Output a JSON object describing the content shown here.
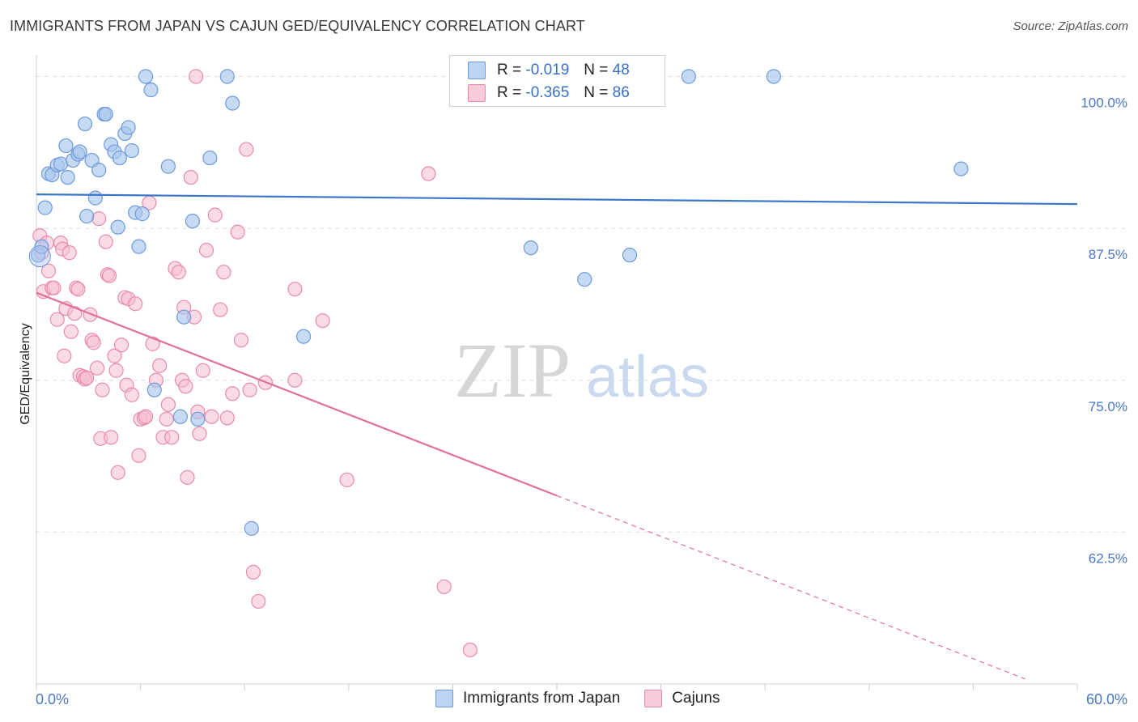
{
  "header": {
    "title": "IMMIGRANTS FROM JAPAN VS CAJUN GED/EQUIVALENCY CORRELATION CHART",
    "source": "Source: ZipAtlas.com"
  },
  "legend": {
    "rows": [
      {
        "r_label": "R =",
        "r_value": "-0.019",
        "n_label": "N =",
        "n_value": "48"
      },
      {
        "r_label": "R =",
        "r_value": "-0.365",
        "n_label": "N =",
        "n_value": "86"
      }
    ],
    "bottom": [
      "Immigrants from Japan",
      "Cajuns"
    ]
  },
  "watermark": {
    "zip": "ZIP",
    "atlas": "atlas"
  },
  "colors": {
    "blue_fill": "#a9c6ee",
    "blue_stroke": "#6d9ad9",
    "blue_line": "#3a77cc",
    "pink_fill": "#f6bdd0",
    "pink_stroke": "#e88aac",
    "pink_line": "#e0709a",
    "tick_text": "#4a78c4"
  },
  "chart_data": {
    "type": "scatter",
    "title": "IMMIGRANTS FROM JAPAN VS CAJUN GED/EQUIVALENCY CORRELATION CHART",
    "xlabel": "",
    "ylabel": "GED/Equivalency",
    "xlim": [
      0,
      60
    ],
    "ylim": [
      50,
      101.5
    ],
    "x_tick_labels": [
      "0.0%",
      "60.0%"
    ],
    "y_ticks": [
      62.5,
      75.0,
      87.5,
      100.0
    ],
    "y_tick_labels": [
      "62.5%",
      "75.0%",
      "87.5%",
      "100.0%"
    ],
    "grid": true,
    "legend_placement": "top-center",
    "series": [
      {
        "name": "Immigrants from Japan",
        "r": -0.019,
        "n": 48,
        "trend": {
          "x": [
            0,
            60
          ],
          "y": [
            90.3,
            89.5
          ]
        },
        "points": [
          [
            0.1,
            85.3
          ],
          [
            0.3,
            86.0
          ],
          [
            0.5,
            89.2
          ],
          [
            0.7,
            92.0
          ],
          [
            0.9,
            91.9
          ],
          [
            1.2,
            92.7
          ],
          [
            1.4,
            92.8
          ],
          [
            1.7,
            94.3
          ],
          [
            1.8,
            91.7
          ],
          [
            2.1,
            93.1
          ],
          [
            2.4,
            93.6
          ],
          [
            2.5,
            93.8
          ],
          [
            2.8,
            96.1
          ],
          [
            2.9,
            88.5
          ],
          [
            3.2,
            93.1
          ],
          [
            3.4,
            90.0
          ],
          [
            3.6,
            92.3
          ],
          [
            3.9,
            96.9
          ],
          [
            4.0,
            96.9
          ],
          [
            4.3,
            94.4
          ],
          [
            4.5,
            93.8
          ],
          [
            4.7,
            87.6
          ],
          [
            4.8,
            93.3
          ],
          [
            5.1,
            95.3
          ],
          [
            5.3,
            95.8
          ],
          [
            5.5,
            93.9
          ],
          [
            5.7,
            88.8
          ],
          [
            5.9,
            86.0
          ],
          [
            6.1,
            88.7
          ],
          [
            6.3,
            100.0
          ],
          [
            6.6,
            98.9
          ],
          [
            6.8,
            74.2
          ],
          [
            7.6,
            92.6
          ],
          [
            8.3,
            72.0
          ],
          [
            8.5,
            80.2
          ],
          [
            9.0,
            88.1
          ],
          [
            9.3,
            71.8
          ],
          [
            10.0,
            93.3
          ],
          [
            11.0,
            100.0
          ],
          [
            11.3,
            97.8
          ],
          [
            12.4,
            62.8
          ],
          [
            15.4,
            78.6
          ],
          [
            28.5,
            85.9
          ],
          [
            31.6,
            83.3
          ],
          [
            34.2,
            85.3
          ],
          [
            37.6,
            100.0
          ],
          [
            42.5,
            100.0
          ],
          [
            53.3,
            92.4
          ]
        ]
      },
      {
        "name": "Cajuns",
        "r": -0.365,
        "n": 86,
        "trend": {
          "x": [
            0,
            30
          ],
          "y": [
            82.2,
            65.5
          ]
        },
        "trend_extension": {
          "x": [
            30,
            57
          ],
          "y": [
            65.5,
            50.4
          ]
        },
        "points": [
          [
            0.2,
            86.9
          ],
          [
            0.3,
            85.5
          ],
          [
            0.4,
            82.3
          ],
          [
            0.6,
            86.3
          ],
          [
            0.7,
            84.0
          ],
          [
            0.9,
            82.6
          ],
          [
            1.0,
            82.6
          ],
          [
            1.2,
            80.0
          ],
          [
            1.4,
            86.3
          ],
          [
            1.5,
            85.8
          ],
          [
            1.6,
            77.0
          ],
          [
            1.7,
            80.9
          ],
          [
            1.9,
            85.5
          ],
          [
            2.0,
            79.0
          ],
          [
            2.2,
            80.5
          ],
          [
            2.3,
            82.6
          ],
          [
            2.4,
            82.5
          ],
          [
            2.5,
            75.4
          ],
          [
            2.7,
            75.3
          ],
          [
            2.8,
            75.1
          ],
          [
            2.9,
            75.2
          ],
          [
            3.1,
            80.4
          ],
          [
            3.2,
            78.3
          ],
          [
            3.3,
            78.1
          ],
          [
            3.5,
            76.0
          ],
          [
            3.6,
            88.3
          ],
          [
            3.7,
            70.2
          ],
          [
            3.8,
            74.2
          ],
          [
            4.0,
            86.4
          ],
          [
            4.1,
            83.7
          ],
          [
            4.2,
            83.6
          ],
          [
            4.3,
            70.3
          ],
          [
            4.5,
            77.0
          ],
          [
            4.6,
            75.8
          ],
          [
            4.7,
            67.4
          ],
          [
            4.9,
            77.9
          ],
          [
            5.1,
            81.8
          ],
          [
            5.2,
            74.6
          ],
          [
            5.3,
            81.7
          ],
          [
            5.5,
            73.8
          ],
          [
            5.7,
            81.3
          ],
          [
            5.9,
            68.8
          ],
          [
            6.0,
            71.8
          ],
          [
            6.2,
            71.9
          ],
          [
            6.3,
            72.0
          ],
          [
            6.5,
            89.6
          ],
          [
            6.7,
            78.0
          ],
          [
            6.9,
            75.0
          ],
          [
            7.1,
            76.2
          ],
          [
            7.3,
            70.3
          ],
          [
            7.5,
            71.8
          ],
          [
            7.6,
            73.0
          ],
          [
            7.8,
            70.3
          ],
          [
            8.0,
            84.2
          ],
          [
            8.2,
            83.9
          ],
          [
            8.4,
            75.0
          ],
          [
            8.5,
            81.0
          ],
          [
            8.6,
            74.5
          ],
          [
            8.7,
            67.0
          ],
          [
            8.9,
            91.7
          ],
          [
            9.1,
            80.2
          ],
          [
            9.3,
            72.4
          ],
          [
            9.4,
            70.6
          ],
          [
            9.6,
            75.8
          ],
          [
            9.8,
            85.7
          ],
          [
            10.1,
            72.0
          ],
          [
            10.3,
            88.6
          ],
          [
            10.6,
            80.8
          ],
          [
            10.8,
            83.9
          ],
          [
            11.0,
            71.9
          ],
          [
            11.3,
            73.9
          ],
          [
            11.6,
            87.2
          ],
          [
            11.8,
            78.3
          ],
          [
            12.1,
            94.0
          ],
          [
            12.3,
            74.2
          ],
          [
            12.5,
            59.2
          ],
          [
            12.8,
            56.8
          ],
          [
            13.2,
            74.8
          ],
          [
            14.9,
            75.0
          ],
          [
            14.9,
            82.5
          ],
          [
            16.5,
            79.9
          ],
          [
            17.9,
            66.8
          ],
          [
            22.6,
            92.0
          ],
          [
            23.5,
            58.0
          ],
          [
            25.0,
            52.8
          ],
          [
            9.2,
            100.0
          ]
        ]
      }
    ]
  }
}
